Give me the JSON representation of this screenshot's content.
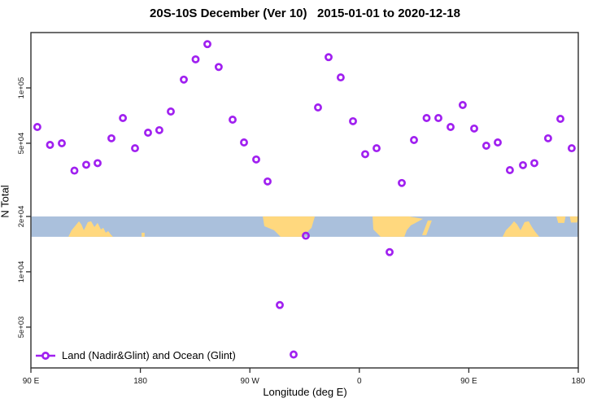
{
  "title": "20S-10S December (Ver 10)   2015-01-01 to 2020-12-18",
  "legend": {
    "label": "Land (Nadir&Glint) and Ocean (Glint)",
    "marker": "open-circle-on-line"
  },
  "colors": {
    "marker": "#A020F0",
    "ocean": "#AAC0DC",
    "land": "#FFD87E",
    "axis": "#2e2e2e",
    "tick_text": "#1a1a1a"
  },
  "chart_data": {
    "type": "scatter",
    "title": "20S-10S December (Ver 10)   2015-01-01 to 2020-12-18",
    "xlabel": "Longitude (deg E)",
    "ylabel": "N Total",
    "grid": false,
    "legend_position": "bottom-left-inside",
    "x_axis": {
      "range": [
        90,
        540
      ],
      "ticks": [
        {
          "lon": 90,
          "label": "90 E"
        },
        {
          "lon": 180,
          "label": "180"
        },
        {
          "lon": 270,
          "label": "90 W"
        },
        {
          "lon": 360,
          "label": "0"
        },
        {
          "lon": 450,
          "label": "90 E"
        },
        {
          "lon": 540,
          "label": "180"
        }
      ]
    },
    "y_axis": {
      "scale": "log",
      "range": [
        3000,
        200000
      ],
      "ticks": [
        {
          "value": 100000,
          "label": "1e+05"
        },
        {
          "value": 50000,
          "label": "5e+04"
        },
        {
          "value": 20000,
          "label": "2e+04"
        },
        {
          "value": 10000,
          "label": "1e+04"
        },
        {
          "value": 5000,
          "label": "5e+03"
        }
      ]
    },
    "series": [
      {
        "name": "Land (Nadir&Glint) and Ocean (Glint)",
        "marker": "open-circle",
        "color": "#A020F0",
        "points": [
          [
            95.3,
            61300
          ],
          [
            105.7,
            49000
          ],
          [
            115.4,
            50000
          ],
          [
            125.8,
            35500
          ],
          [
            135.5,
            38200
          ],
          [
            144.8,
            39000
          ],
          [
            156.2,
            53200
          ],
          [
            165.6,
            68600
          ],
          [
            175.6,
            47000
          ],
          [
            186.3,
            57100
          ],
          [
            195.6,
            58900
          ],
          [
            205.0,
            74400
          ],
          [
            215.7,
            111000
          ],
          [
            225.4,
            143000
          ],
          [
            235.1,
            173000
          ],
          [
            244.4,
            130000
          ],
          [
            255.8,
            67200
          ],
          [
            265.2,
            50500
          ],
          [
            275.2,
            40800
          ],
          [
            284.6,
            31000
          ],
          [
            294.6,
            6600
          ],
          [
            306.0,
            3550
          ],
          [
            316.0,
            15700
          ],
          [
            326.0,
            78300
          ],
          [
            334.7,
            147000
          ],
          [
            344.7,
            114000
          ],
          [
            354.8,
            65900
          ],
          [
            364.8,
            43600
          ],
          [
            374.2,
            47000
          ],
          [
            384.9,
            12800
          ],
          [
            394.9,
            30400
          ],
          [
            404.9,
            52100
          ],
          [
            415.3,
            68600
          ],
          [
            425.0,
            68600
          ],
          [
            435.0,
            61300
          ],
          [
            445.0,
            80700
          ],
          [
            454.4,
            60100
          ],
          [
            464.4,
            48500
          ],
          [
            473.8,
            50500
          ],
          [
            483.8,
            35700
          ],
          [
            494.5,
            38000
          ],
          [
            503.9,
            39000
          ],
          [
            515.2,
            53200
          ],
          [
            525.3,
            67900
          ],
          [
            534.6,
            47000
          ]
        ]
      }
    ],
    "map_band": {
      "description": "land-ocean strip for latitude band 20S-10S drawn across plot",
      "top_value": 20000,
      "bottom_value": 15500,
      "ocean_color": "#AAC0DC",
      "land_color": "#FFD87E",
      "land_polygons": {
        "australia": [
          [
            120.8,
            0
          ],
          [
            123.4,
            0.32
          ],
          [
            126.8,
            0.56
          ],
          [
            129.5,
            0.76
          ],
          [
            131.5,
            0.6
          ],
          [
            133.5,
            0.32
          ],
          [
            136.8,
            0.72
          ],
          [
            139.5,
            0.76
          ],
          [
            142.2,
            0.48
          ],
          [
            144.8,
            0.68
          ],
          [
            147.5,
            0.36
          ],
          [
            149.5,
            0.44
          ],
          [
            151.5,
            0.2
          ],
          [
            153.5,
            0.28
          ],
          [
            155.5,
            0.12
          ],
          [
            157.5,
            0
          ]
        ],
        "fiji_fleck": [
          [
            181,
            0
          ],
          [
            181,
            0.2
          ],
          [
            183.5,
            0.2
          ],
          [
            183.5,
            0
          ]
        ],
        "south_america": [
          [
            280.6,
            1
          ],
          [
            323.4,
            1
          ],
          [
            320.7,
            0.44
          ],
          [
            313.3,
            0
          ],
          [
            295.3,
            0
          ],
          [
            289.9,
            0.32
          ],
          [
            281.9,
            0.52
          ]
        ],
        "africa": [
          [
            370.9,
            1
          ],
          [
            401,
            1
          ],
          [
            412.3,
            0.88
          ],
          [
            402.3,
            0.56
          ],
          [
            399,
            0.32
          ],
          [
            397,
            0
          ],
          [
            377.5,
            0
          ],
          [
            371.5,
            0.36
          ]
        ],
        "madagascar": [
          [
            416.3,
            0.8
          ],
          [
            419.6,
            0.8
          ],
          [
            415,
            0.08
          ],
          [
            411.6,
            0.08
          ]
        ],
        "australia_repeat": [
          [
            477.8,
            0
          ],
          [
            480.5,
            0.32
          ],
          [
            484.5,
            0.56
          ],
          [
            487.2,
            0.76
          ],
          [
            489.8,
            0.6
          ],
          [
            492.5,
            0.32
          ],
          [
            495.9,
            0.72
          ],
          [
            499.2,
            0.76
          ],
          [
            501.9,
            0.48
          ],
          [
            504.6,
            0.24
          ],
          [
            507.9,
            0
          ]
        ],
        "new_guinea_fleck_1": [
          [
            522,
            1
          ],
          [
            529.5,
            1
          ],
          [
            528.5,
            0.68
          ],
          [
            523.5,
            0.68
          ]
        ],
        "new_guinea_fleck_2": [
          [
            533,
            1
          ],
          [
            540,
            1
          ],
          [
            539,
            0.7
          ],
          [
            534,
            0.7
          ]
        ]
      }
    }
  }
}
